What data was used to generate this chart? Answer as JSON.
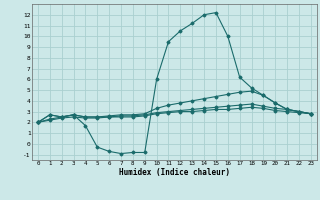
{
  "xlabel": "Humidex (Indice chaleur)",
  "ylabel": "",
  "bg_color": "#cce8e8",
  "grid_color": "#aad0d0",
  "line_color": "#1a6b6b",
  "xlim": [
    -0.5,
    23.5
  ],
  "ylim": [
    -1.5,
    13.0
  ],
  "xticks": [
    0,
    1,
    2,
    3,
    4,
    5,
    6,
    7,
    8,
    9,
    10,
    11,
    12,
    13,
    14,
    15,
    16,
    17,
    18,
    19,
    20,
    21,
    22,
    23
  ],
  "yticks": [
    -1,
    0,
    1,
    2,
    3,
    4,
    5,
    6,
    7,
    8,
    9,
    10,
    11,
    12
  ],
  "curves": [
    {
      "x": [
        0,
        1,
        2,
        3,
        4,
        5,
        6,
        7,
        8,
        9,
        10,
        11,
        12,
        13,
        14,
        15,
        16,
        17,
        18,
        19,
        20,
        21,
        22,
        23
      ],
      "y": [
        2.0,
        2.7,
        2.5,
        2.7,
        1.7,
        -0.3,
        -0.7,
        -0.9,
        -0.8,
        -0.8,
        6.0,
        9.5,
        10.5,
        11.2,
        12.0,
        12.2,
        10.0,
        6.2,
        5.2,
        4.5,
        3.8,
        3.2,
        3.0,
        2.8
      ]
    },
    {
      "x": [
        0,
        1,
        2,
        3,
        4,
        5,
        6,
        7,
        8,
        9,
        10,
        11,
        12,
        13,
        14,
        15,
        16,
        17,
        18,
        19,
        20,
        21,
        22,
        23
      ],
      "y": [
        2.0,
        2.7,
        2.5,
        2.7,
        2.5,
        2.5,
        2.6,
        2.7,
        2.7,
        2.8,
        3.3,
        3.6,
        3.8,
        4.0,
        4.2,
        4.4,
        4.6,
        4.8,
        4.9,
        4.5,
        3.8,
        3.2,
        3.0,
        2.8
      ]
    },
    {
      "x": [
        0,
        1,
        2,
        3,
        4,
        5,
        6,
        7,
        8,
        9,
        10,
        11,
        12,
        13,
        14,
        15,
        16,
        17,
        18,
        19,
        20,
        21,
        22,
        23
      ],
      "y": [
        2.0,
        2.3,
        2.5,
        2.7,
        2.5,
        2.5,
        2.5,
        2.6,
        2.6,
        2.7,
        2.9,
        3.0,
        3.1,
        3.2,
        3.3,
        3.4,
        3.5,
        3.6,
        3.7,
        3.5,
        3.3,
        3.2,
        3.0,
        2.8
      ]
    },
    {
      "x": [
        0,
        1,
        2,
        3,
        4,
        5,
        6,
        7,
        8,
        9,
        10,
        11,
        12,
        13,
        14,
        15,
        16,
        17,
        18,
        19,
        20,
        21,
        22,
        23
      ],
      "y": [
        2.0,
        2.2,
        2.4,
        2.5,
        2.4,
        2.4,
        2.5,
        2.5,
        2.5,
        2.6,
        2.8,
        2.9,
        3.0,
        3.0,
        3.1,
        3.2,
        3.2,
        3.3,
        3.4,
        3.3,
        3.1,
        3.0,
        2.9,
        2.8
      ]
    }
  ]
}
